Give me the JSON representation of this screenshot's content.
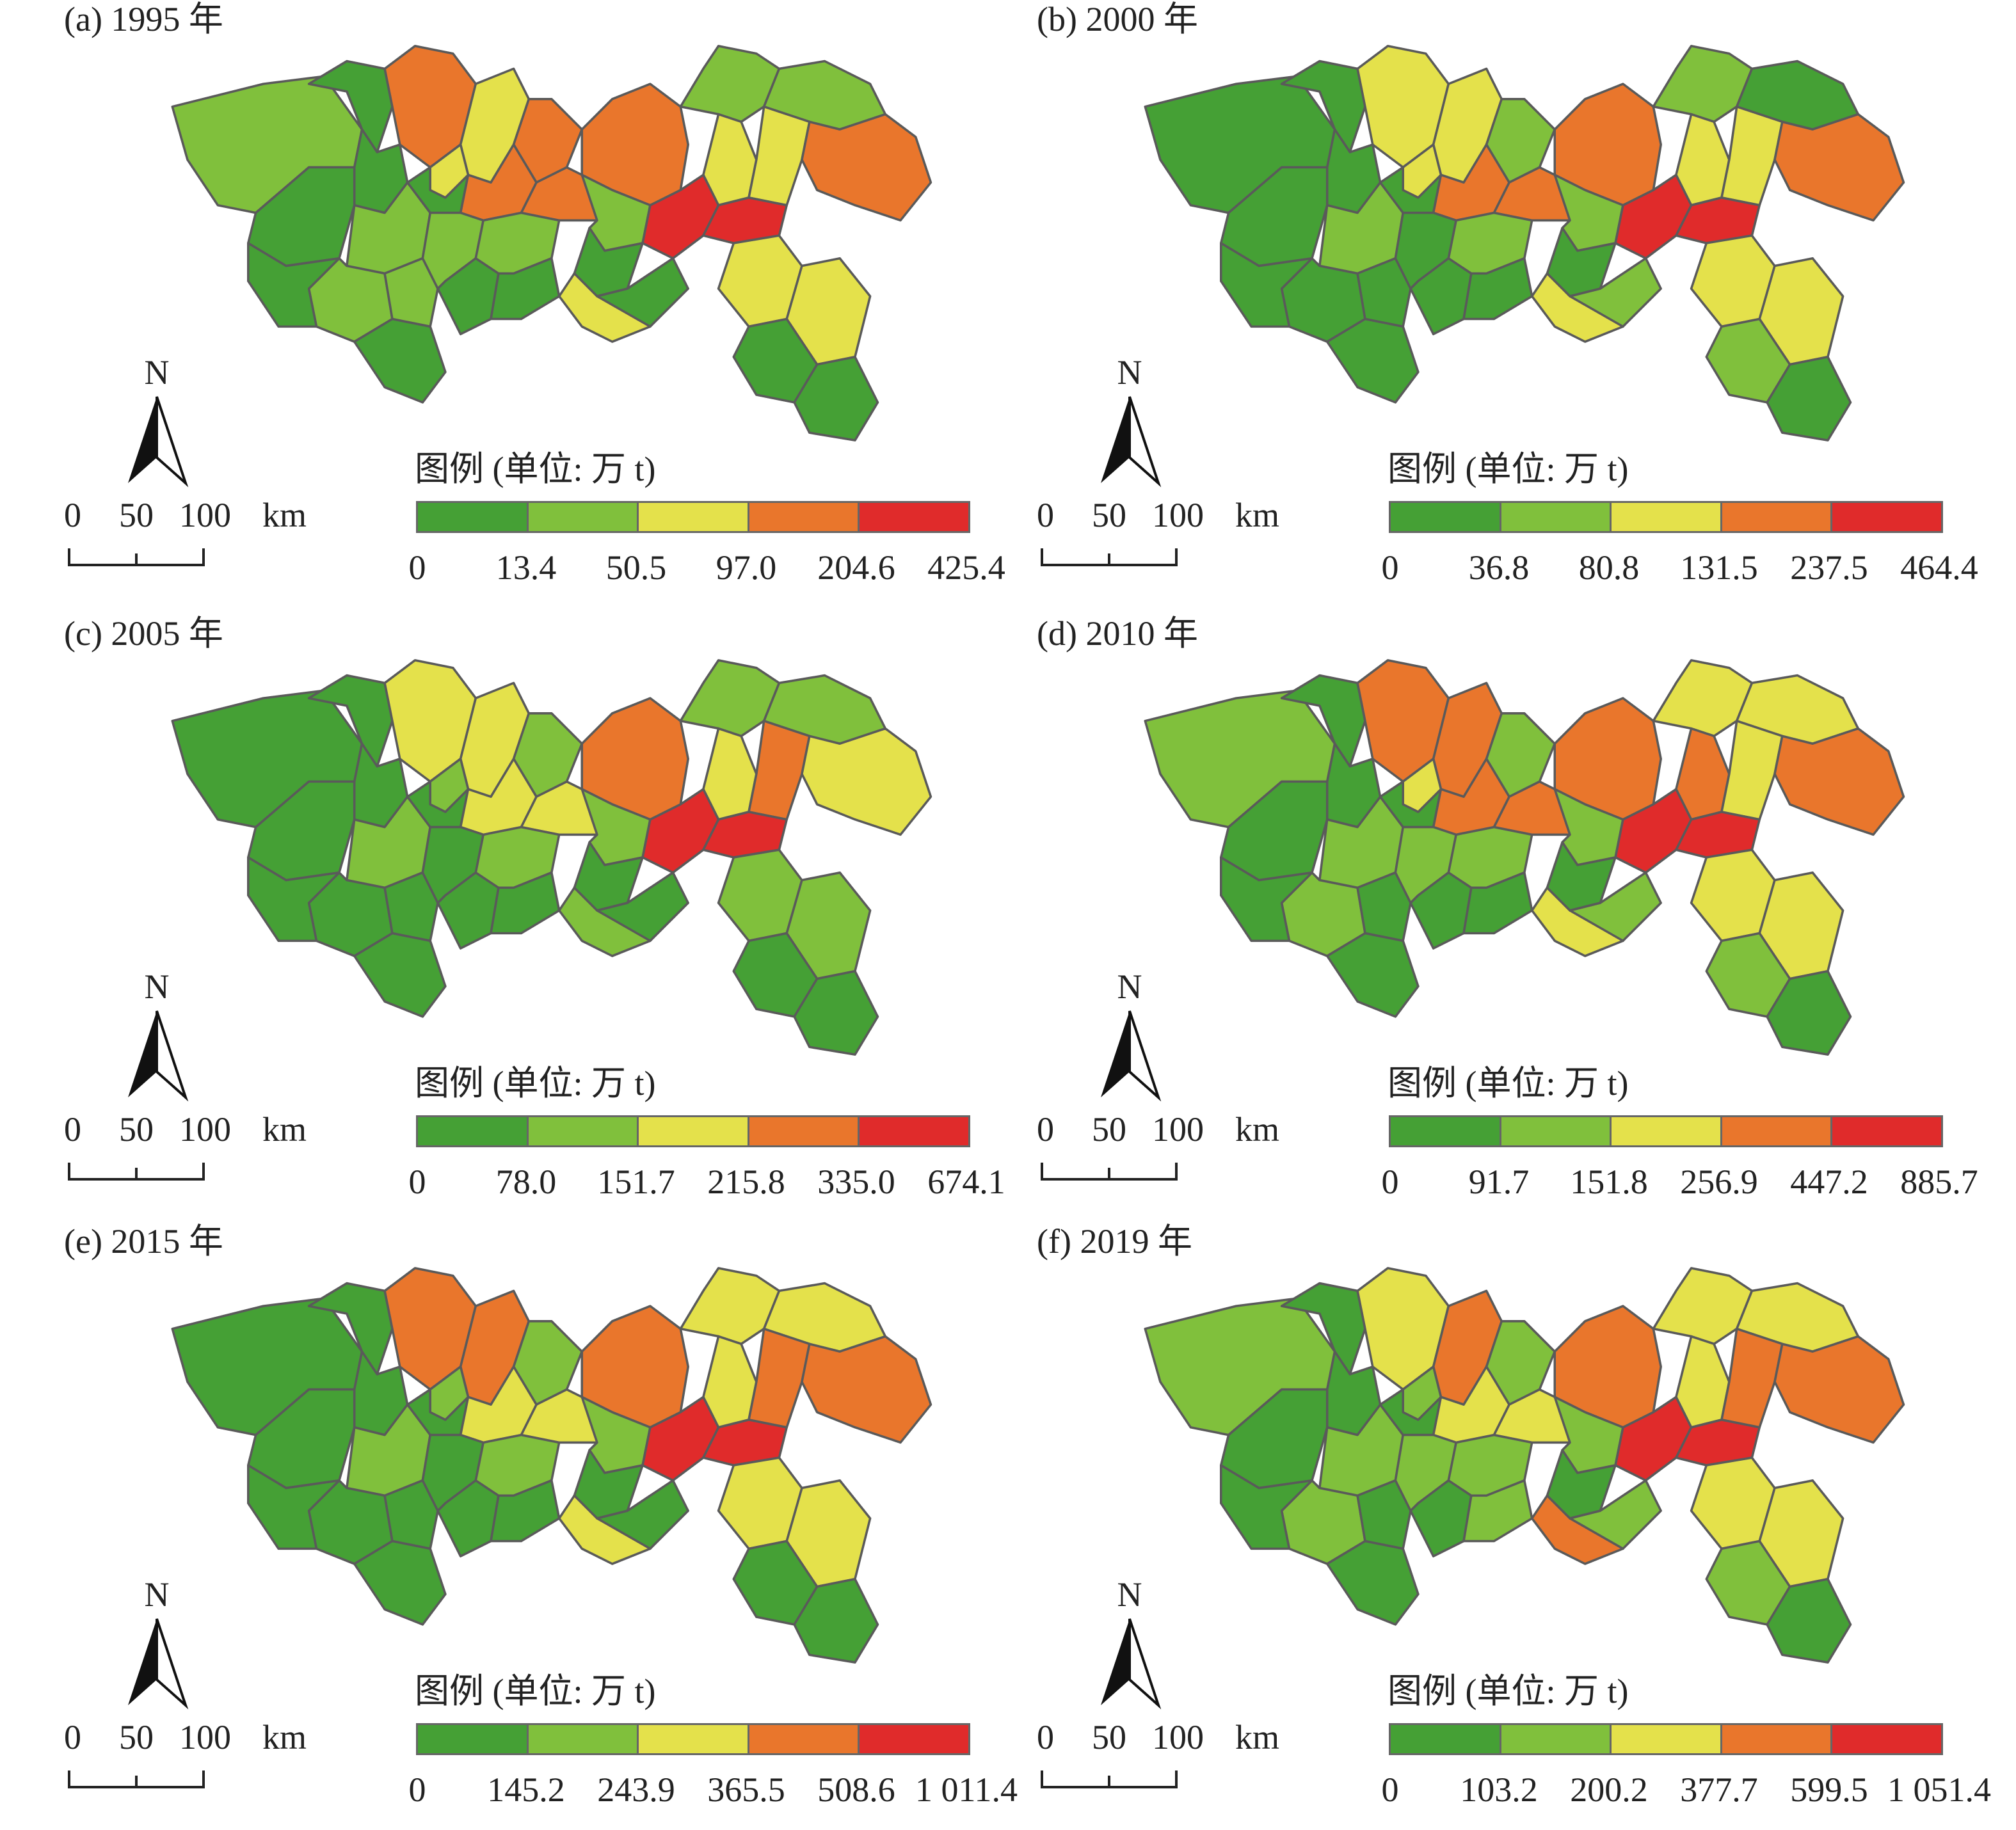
{
  "legend_title": "图例 (单位: 万 t)",
  "north_label": "N",
  "scale_labels": [
    "0",
    "50",
    "100",
    "km"
  ],
  "colors": [
    "#45a035",
    "#80c03c",
    "#e4e14b",
    "#e9762c",
    "#e02b2b"
  ],
  "panels": [
    {
      "title": "(a) 1995 年",
      "ticks": [
        "0",
        "13.4",
        "50.5",
        "97.0",
        "204.6",
        "425.4"
      ],
      "classes": [
        1,
        0,
        3,
        0,
        2,
        3,
        3,
        1,
        0,
        1,
        0,
        2,
        3,
        3,
        2,
        1,
        1,
        1,
        1,
        0,
        0,
        0,
        1,
        0,
        0,
        1,
        2,
        4,
        2,
        0,
        4,
        3,
        2,
        2,
        0,
        0
      ]
    },
    {
      "title": "(b) 2000 年",
      "ticks": [
        "0",
        "36.8",
        "80.8",
        "131.5",
        "237.5",
        "464.4"
      ],
      "classes": [
        0,
        0,
        2,
        0,
        2,
        1,
        3,
        1,
        0,
        1,
        0,
        2,
        3,
        3,
        2,
        1,
        0,
        0,
        0,
        0,
        0,
        0,
        1,
        0,
        0,
        0,
        2,
        4,
        2,
        1,
        4,
        3,
        2,
        2,
        1,
        0
      ]
    },
    {
      "title": "(c) 2005 年",
      "ticks": [
        "0",
        "78.0",
        "151.7",
        "215.8",
        "335.0",
        "674.1"
      ],
      "classes": [
        0,
        0,
        2,
        0,
        2,
        1,
        3,
        1,
        0,
        1,
        0,
        1,
        2,
        2,
        2,
        1,
        0,
        0,
        0,
        0,
        0,
        0,
        1,
        0,
        0,
        1,
        3,
        4,
        1,
        0,
        4,
        2,
        1,
        1,
        0,
        0
      ]
    },
    {
      "title": "(d) 2010 年",
      "ticks": [
        "0",
        "91.7",
        "151.8",
        "256.9",
        "447.2",
        "885.7"
      ],
      "classes": [
        1,
        0,
        3,
        0,
        3,
        1,
        3,
        2,
        0,
        1,
        0,
        2,
        3,
        3,
        3,
        1,
        1,
        0,
        1,
        0,
        0,
        0,
        1,
        0,
        0,
        2,
        2,
        4,
        2,
        1,
        4,
        3,
        2,
        2,
        1,
        0
      ]
    },
    {
      "title": "(e) 2015 年",
      "ticks": [
        "0",
        "145.2",
        "243.9",
        "365.5",
        "508.6",
        "1 011.4"
      ],
      "classes": [
        0,
        0,
        3,
        0,
        3,
        1,
        3,
        2,
        0,
        1,
        0,
        1,
        2,
        2,
        2,
        1,
        0,
        0,
        0,
        0,
        0,
        0,
        1,
        0,
        0,
        2,
        3,
        4,
        2,
        0,
        4,
        3,
        2,
        2,
        0,
        0
      ]
    },
    {
      "title": "(f) 2019 年",
      "ticks": [
        "0",
        "103.2",
        "200.2",
        "377.7",
        "599.5",
        "1 051.4"
      ],
      "classes": [
        1,
        0,
        2,
        0,
        3,
        1,
        3,
        2,
        0,
        1,
        0,
        1,
        2,
        2,
        2,
        1,
        1,
        0,
        1,
        0,
        0,
        0,
        1,
        1,
        0,
        2,
        3,
        4,
        3,
        1,
        4,
        3,
        2,
        2,
        1,
        0
      ]
    }
  ]
}
